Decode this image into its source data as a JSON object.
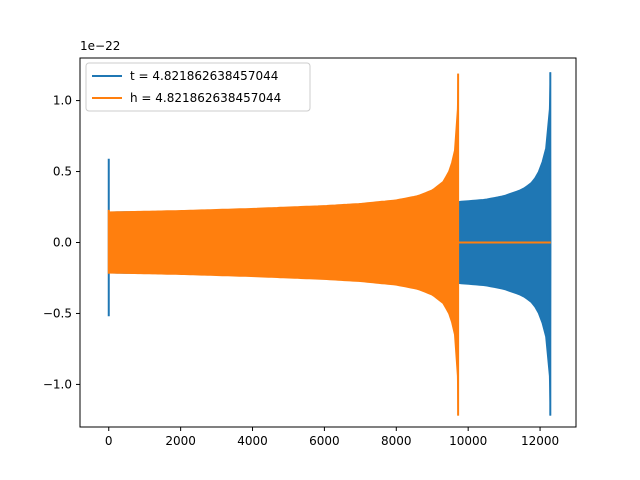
{
  "chart_data": {
    "type": "line",
    "offset_text": "1e−22",
    "xlim": [
      -800,
      13000
    ],
    "ylim": [
      -1.3,
      1.3
    ],
    "xticks": [
      0,
      2000,
      4000,
      6000,
      8000,
      10000,
      12000
    ],
    "yticks": [
      -1.0,
      -0.5,
      0.0,
      0.5,
      1.0
    ],
    "xtick_labels": [
      "0",
      "2000",
      "4000",
      "6000",
      "8000",
      "10000",
      "12000"
    ],
    "ytick_labels": [
      "−1.0",
      "−0.5",
      "0.0",
      "0.5",
      "1.0"
    ],
    "legend_position": "upper-left",
    "series": [
      {
        "name": "t = 4.821862638457044",
        "color": "#1f77b4",
        "spike": {
          "x": 0,
          "max": 0.59,
          "min": -0.52
        },
        "envelope": [
          [
            0,
            0.215
          ],
          [
            2000,
            0.22
          ],
          [
            4000,
            0.23
          ],
          [
            6000,
            0.245
          ],
          [
            8000,
            0.26
          ],
          [
            9000,
            0.27
          ],
          [
            9800,
            0.29
          ],
          [
            10500,
            0.305
          ],
          [
            11000,
            0.33
          ],
          [
            11500,
            0.375
          ],
          [
            11800,
            0.43
          ],
          [
            12000,
            0.52
          ],
          [
            12150,
            0.65
          ],
          [
            12230,
            0.8
          ],
          [
            12260,
            0.94
          ]
        ],
        "end_spike": {
          "x": 12285,
          "max": 1.2,
          "min": -1.22
        },
        "end_x": 12300
      },
      {
        "name": "h = 4.821862638457044",
        "color": "#ff7f0e",
        "spike": {
          "x": 0,
          "max": 0.23,
          "min": -0.22
        },
        "envelope": [
          [
            0,
            0.215
          ],
          [
            2000,
            0.225
          ],
          [
            4000,
            0.24
          ],
          [
            6000,
            0.26
          ],
          [
            7000,
            0.275
          ],
          [
            8000,
            0.3
          ],
          [
            8600,
            0.33
          ],
          [
            9000,
            0.37
          ],
          [
            9300,
            0.43
          ],
          [
            9500,
            0.52
          ],
          [
            9620,
            0.65
          ],
          [
            9680,
            0.8
          ],
          [
            9700,
            0.94
          ]
        ],
        "end_spike": {
          "x": 9720,
          "max": 1.19,
          "min": -1.22
        },
        "end_x": 9730,
        "flat_after": {
          "from": 9730,
          "to": 12300,
          "value": 0.0
        }
      }
    ]
  }
}
